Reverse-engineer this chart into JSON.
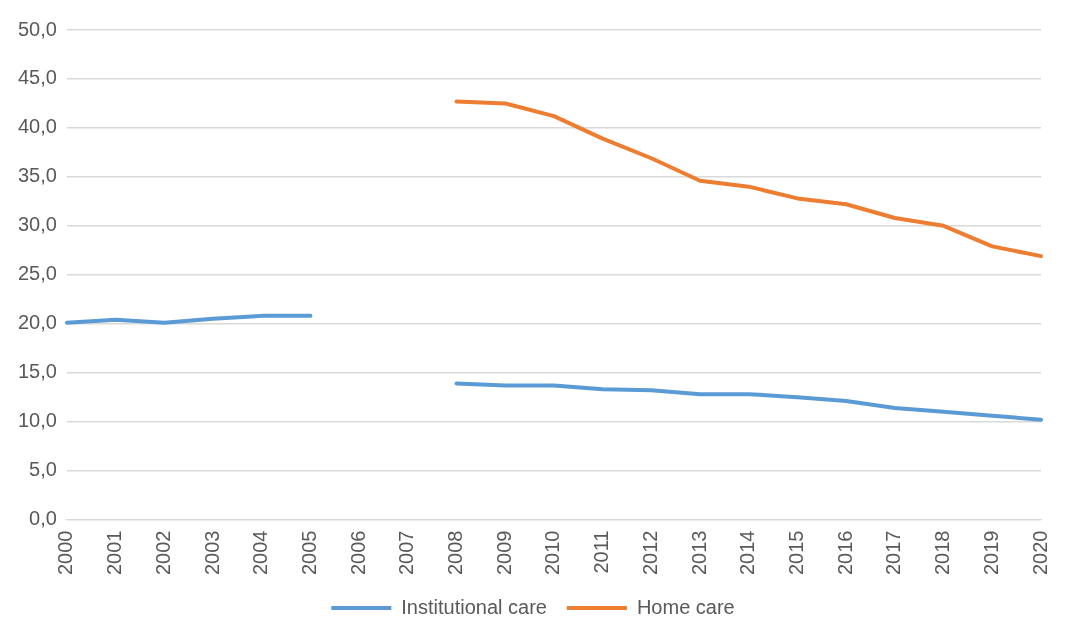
{
  "chart_data": {
    "type": "line",
    "categories": [
      "2000",
      "2001",
      "2002",
      "2003",
      "2004",
      "2005",
      "2006",
      "2007",
      "2008",
      "2009",
      "2010",
      "2011",
      "2012",
      "2013",
      "2014",
      "2015",
      "2016",
      "2017",
      "2018",
      "2019",
      "2020"
    ],
    "series": [
      {
        "name": "Institutional care",
        "color": "#5b9bd5",
        "values": [
          20.1,
          20.4,
          20.1,
          20.5,
          20.8,
          20.8,
          null,
          null,
          13.9,
          13.7,
          13.7,
          13.3,
          13.2,
          12.8,
          12.8,
          12.5,
          12.1,
          11.4,
          11.0,
          10.6,
          10.2
        ]
      },
      {
        "name": "Home care",
        "color": "#ed7d31",
        "values": [
          null,
          null,
          null,
          null,
          null,
          null,
          null,
          null,
          42.7,
          42.5,
          41.2,
          38.9,
          36.9,
          34.6,
          34.0,
          32.8,
          32.2,
          30.8,
          30.0,
          27.9,
          26.9
        ]
      }
    ],
    "ylim": [
      0,
      50
    ],
    "yticks": [
      {
        "value": 0,
        "label": "0,0"
      },
      {
        "value": 5,
        "label": "5,0"
      },
      {
        "value": 10,
        "label": "10,0"
      },
      {
        "value": 15,
        "label": "15,0"
      },
      {
        "value": 20,
        "label": "20,0"
      },
      {
        "value": 25,
        "label": "25,0"
      },
      {
        "value": 30,
        "label": "30,0"
      },
      {
        "value": 35,
        "label": "35,0"
      },
      {
        "value": 40,
        "label": "40,0"
      },
      {
        "value": 45,
        "label": "45,0"
      },
      {
        "value": 50,
        "label": "50,0"
      }
    ],
    "grid": "y",
    "legend": "bottom",
    "marker": "none",
    "line_style": "solid"
  }
}
